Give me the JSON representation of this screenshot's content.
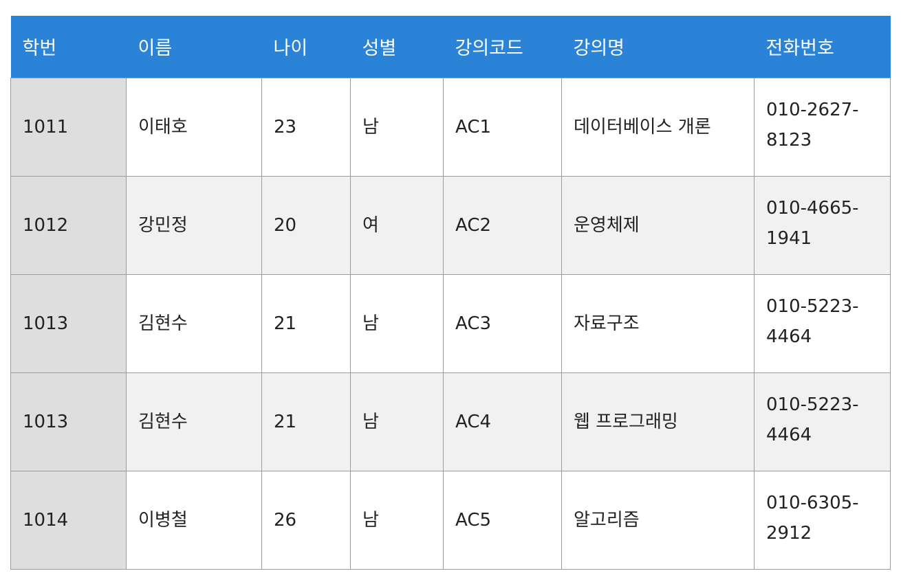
{
  "table": {
    "headers": [
      "학번",
      "이름",
      "나이",
      "성별",
      "강의코드",
      "강의명",
      "전화번호"
    ],
    "rows": [
      {
        "id": "1011",
        "name": "이태호",
        "age": "23",
        "gender": "남",
        "course_code": "AC1",
        "course_name": "데이터베이스 개론",
        "phone_1": "010-2627-",
        "phone_2": "8123"
      },
      {
        "id": "1012",
        "name": "강민정",
        "age": "20",
        "gender": "여",
        "course_code": "AC2",
        "course_name": "운영체제",
        "phone_1": "010-4665-",
        "phone_2": "1941"
      },
      {
        "id": "1013",
        "name": "김현수",
        "age": "21",
        "gender": "남",
        "course_code": "AC3",
        "course_name": "자료구조",
        "phone_1": "010-5223-",
        "phone_2": "4464"
      },
      {
        "id": "1013",
        "name": "김현수",
        "age": "21",
        "gender": "남",
        "course_code": "AC4",
        "course_name": "웹 프로그래밍",
        "phone_1": "010-5223-",
        "phone_2": "4464"
      },
      {
        "id": "1014",
        "name": "이병철",
        "age": "26",
        "gender": "남",
        "course_code": "AC5",
        "course_name": "알고리즘",
        "phone_1": "010-6305-",
        "phone_2": "2912"
      }
    ]
  },
  "colors": {
    "header_bg": "#2b83d8",
    "header_text": "#ffffff",
    "id_column_bg": "#dedede",
    "even_row_bg": "#f1f1f1",
    "border": "#9a9a9a"
  }
}
